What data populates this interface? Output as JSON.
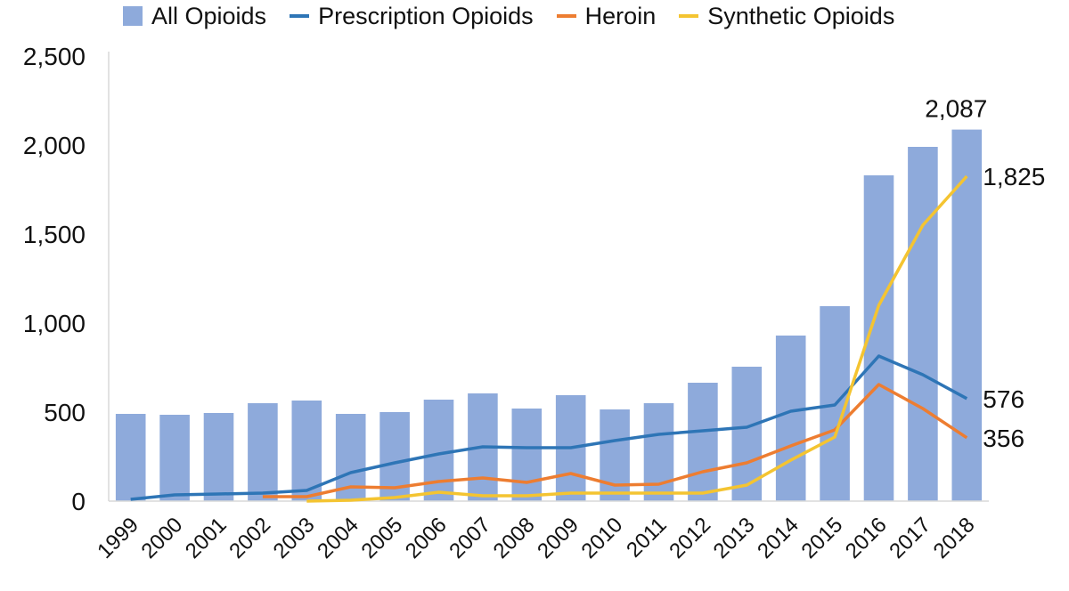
{
  "chart_data": {
    "type": "bar",
    "categories": [
      "1999",
      "2000",
      "2001",
      "2002",
      "2003",
      "2004",
      "2005",
      "2006",
      "2007",
      "2008",
      "2009",
      "2010",
      "2011",
      "2012",
      "2013",
      "2014",
      "2015",
      "2016",
      "2017",
      "2018"
    ],
    "ylim": [
      0,
      2500
    ],
    "yticks": [
      0,
      500,
      1000,
      1500,
      2000,
      2500
    ],
    "ytick_labels": [
      "0",
      "500",
      "1,000",
      "1,500",
      "2,000",
      "2,500"
    ],
    "grid": false,
    "legend_placement": "top",
    "series": [
      {
        "name": "All Opioids",
        "type": "bar",
        "color": "#8eaadb",
        "values": [
          490,
          485,
          495,
          550,
          565,
          490,
          500,
          570,
          605,
          520,
          595,
          515,
          550,
          665,
          755,
          930,
          1095,
          1830,
          1990,
          2087
        ]
      },
      {
        "name": "Prescription Opioids",
        "type": "line",
        "color": "#2e75b6",
        "values": [
          10,
          35,
          40,
          45,
          60,
          160,
          215,
          265,
          305,
          300,
          300,
          340,
          375,
          395,
          415,
          505,
          540,
          815,
          710,
          576
        ]
      },
      {
        "name": "Heroin",
        "type": "line",
        "color": "#ed7d31",
        "values": [
          null,
          null,
          null,
          25,
          25,
          80,
          75,
          110,
          130,
          105,
          155,
          90,
          95,
          165,
          215,
          310,
          400,
          655,
          520,
          356
        ]
      },
      {
        "name": "Synthetic Opioids",
        "type": "line",
        "color": "#f4c431",
        "values": [
          null,
          null,
          null,
          null,
          0,
          5,
          20,
          50,
          30,
          30,
          45,
          45,
          45,
          45,
          90,
          230,
          360,
          1100,
          1550,
          1825
        ]
      }
    ],
    "annotations": [
      {
        "series": 0,
        "index": 19,
        "text": "2,087"
      },
      {
        "series": 3,
        "index": 19,
        "text": "1,825"
      },
      {
        "series": 1,
        "index": 19,
        "text": "576"
      },
      {
        "series": 2,
        "index": 19,
        "text": "356"
      }
    ]
  }
}
